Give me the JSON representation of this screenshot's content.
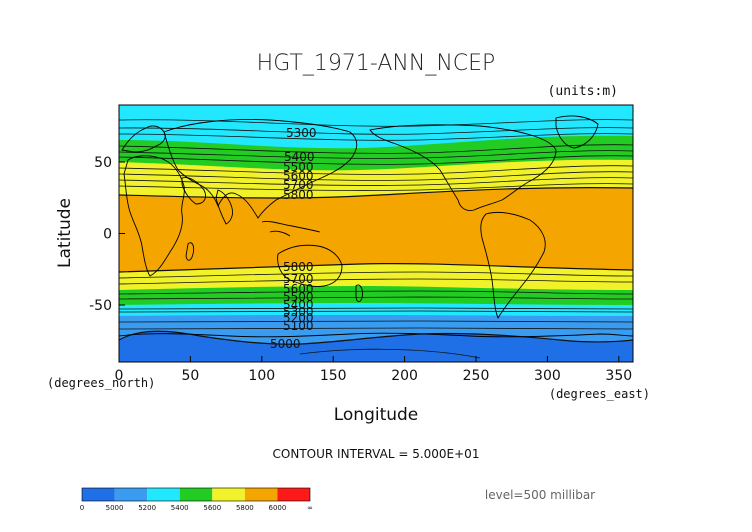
{
  "chart_data": {
    "type": "contour",
    "title": "HGT_1971-ANN_NCEP",
    "units": "(units:m)",
    "xlabel": "Longitude",
    "ylabel": "Latitude",
    "x_unit_label": "(degrees_east)",
    "y_unit_label": "(degrees_north)",
    "xlim": [
      0,
      360
    ],
    "ylim": [
      -90,
      90
    ],
    "x_ticks": [
      "0",
      "50",
      "100",
      "150",
      "200",
      "250",
      "300",
      "350"
    ],
    "y_ticks": [
      "50",
      "0",
      "-50"
    ],
    "contour_interval_text": "CONTOUR INTERVAL = 5.000E+01",
    "level_text": "level=500 millibar",
    "contour_labels": [
      "5300",
      "5400",
      "5500",
      "5600",
      "5700",
      "5800",
      "5800",
      "5700",
      "5600",
      "5500",
      "5400",
      "5300",
      "5200",
      "5100",
      "5000"
    ],
    "colorbar": {
      "ticks": [
        "0",
        "5000",
        "5200",
        "5400",
        "5600",
        "5800",
        "6000",
        "∞"
      ],
      "colors": [
        "#1f6fe6",
        "#3a9cf0",
        "#22e8ff",
        "#22cc22",
        "#f2f22a",
        "#f5a500",
        "#ff1a1a"
      ]
    },
    "bands": [
      {
        "range": "< 5000",
        "color": "#1f6fe6"
      },
      {
        "range": "5000-5200",
        "color": "#3a9cf0"
      },
      {
        "range": "5200-5400",
        "color": "#22e8ff"
      },
      {
        "range": "5400-5600",
        "color": "#22cc22"
      },
      {
        "range": "5600-5800",
        "color": "#f2f22a"
      },
      {
        "range": "5800-6000",
        "color": "#f5a500"
      }
    ]
  }
}
